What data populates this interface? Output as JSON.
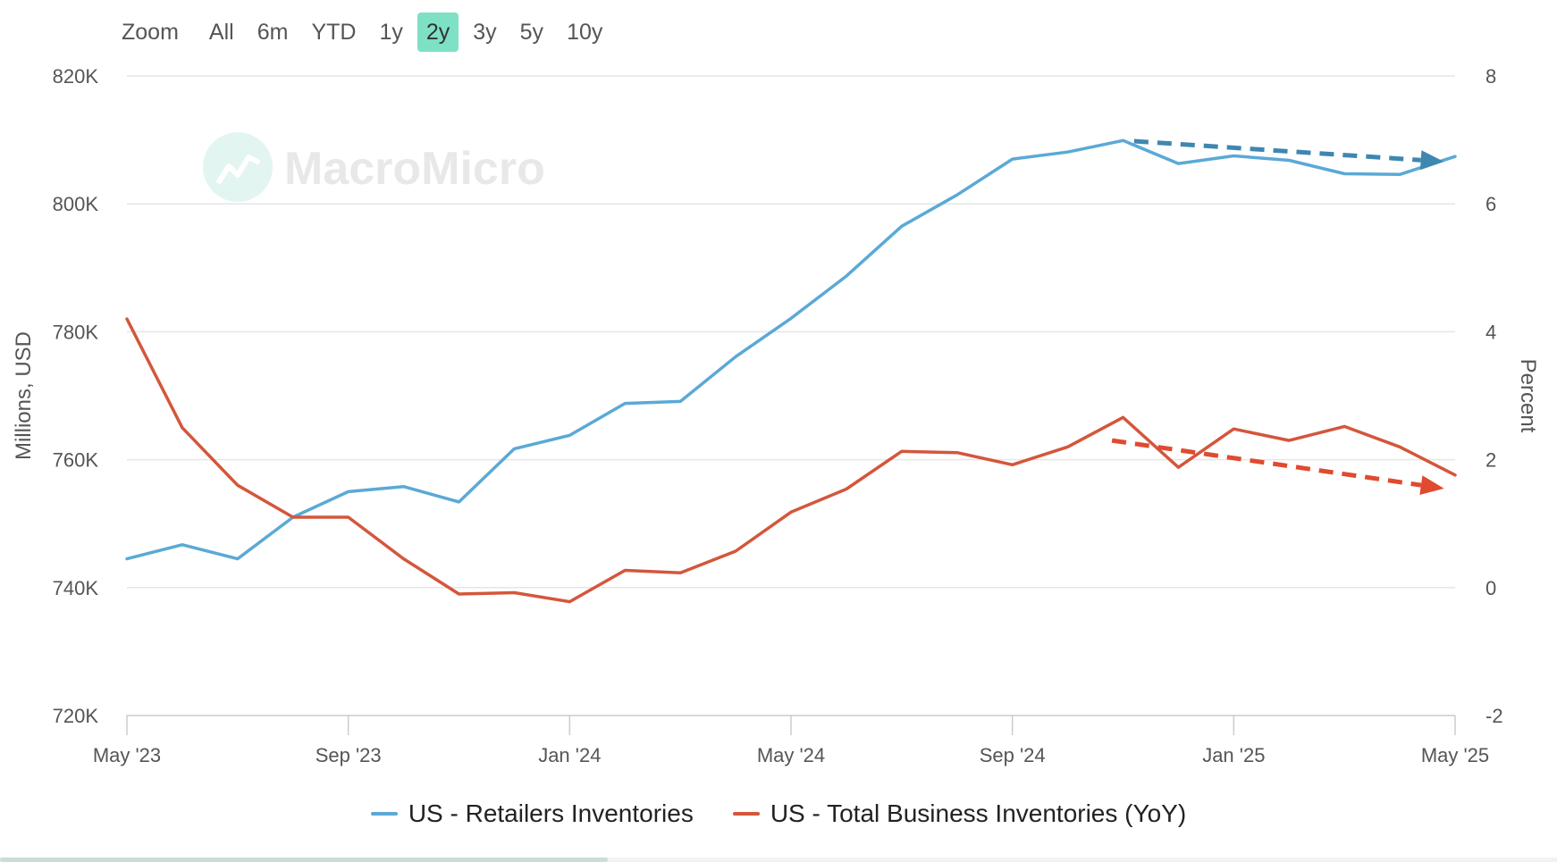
{
  "zoom": {
    "label": "Zoom",
    "buttons": [
      "All",
      "6m",
      "YTD",
      "1y",
      "2y",
      "3y",
      "5y",
      "10y"
    ],
    "active": "2y",
    "active_color": "#7ee0c4"
  },
  "watermark": {
    "text": "MacroMicro"
  },
  "chart_data": {
    "type": "line",
    "x": [
      "2023-05",
      "2023-06",
      "2023-07",
      "2023-08",
      "2023-09",
      "2023-10",
      "2023-11",
      "2023-12",
      "2024-01",
      "2024-02",
      "2024-03",
      "2024-04",
      "2024-05",
      "2024-06",
      "2024-07",
      "2024-08",
      "2024-09",
      "2024-10",
      "2024-11",
      "2024-12",
      "2025-01",
      "2025-02",
      "2025-03",
      "2025-04",
      "2025-05"
    ],
    "x_tick_labels": [
      "May '23",
      "Sep '23",
      "Jan '24",
      "May '24",
      "Sep '24",
      "Jan '25",
      "May '25"
    ],
    "x_tick_index": [
      0,
      4,
      8,
      12,
      16,
      20,
      24
    ],
    "left_axis": {
      "title": "Millions, USD",
      "range": [
        720000,
        820000
      ],
      "ticks": [
        "720K",
        "740K",
        "760K",
        "780K",
        "800K",
        "820K"
      ],
      "tick_values": [
        720000,
        740000,
        760000,
        780000,
        800000,
        820000
      ]
    },
    "right_axis": {
      "title": "Percent",
      "range": [
        -2,
        8
      ],
      "ticks": [
        "-2",
        "0",
        "2",
        "4",
        "6",
        "8"
      ],
      "tick_values": [
        -2,
        0,
        2,
        4,
        6,
        8
      ]
    },
    "series": [
      {
        "name": "US - Retailers Inventories",
        "axis": "left",
        "color": "#5aa9d6",
        "values": [
          744500,
          746700,
          744500,
          751000,
          755000,
          755800,
          753400,
          761700,
          763800,
          768800,
          769100,
          776100,
          782100,
          788700,
          796500,
          801400,
          807000,
          808100,
          809900,
          806300,
          807500,
          806800,
          804700,
          804600,
          807400
        ]
      },
      {
        "name": "US - Total Business Inventories (YoY)",
        "axis": "right",
        "color": "#d4563b",
        "values": [
          4.2,
          2.5,
          1.6,
          1.1,
          1.1,
          0.45,
          -0.1,
          -0.08,
          -0.22,
          0.27,
          0.23,
          0.57,
          1.18,
          1.54,
          2.13,
          2.11,
          1.92,
          2.2,
          2.66,
          1.88,
          2.48,
          2.3,
          2.52,
          2.2,
          1.76
        ]
      }
    ],
    "annotations": [
      {
        "type": "trend-arrow",
        "series": "US - Retailers Inventories",
        "color": "#3d87b0",
        "from": {
          "x_index": 18.2,
          "value": 809800
        },
        "to": {
          "x_index": 23.8,
          "value": 806600
        }
      },
      {
        "type": "trend-arrow",
        "series": "US - Total Business Inventories (YoY)",
        "color": "#e04a30",
        "from": {
          "x_index": 17.8,
          "value": 2.3
        },
        "to": {
          "x_index": 23.8,
          "value": 1.55
        }
      }
    ],
    "grid": true,
    "legend_position": "bottom-center"
  }
}
